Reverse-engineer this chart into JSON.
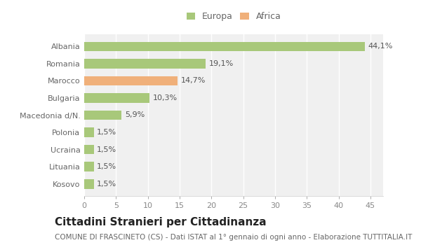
{
  "categories": [
    "Kosovo",
    "Lituania",
    "Ucraina",
    "Polonia",
    "Macedonia d/N.",
    "Bulgaria",
    "Marocco",
    "Romania",
    "Albania"
  ],
  "values": [
    1.5,
    1.5,
    1.5,
    1.5,
    5.9,
    10.3,
    14.7,
    19.1,
    44.1
  ],
  "labels": [
    "1,5%",
    "1,5%",
    "1,5%",
    "1,5%",
    "5,9%",
    "10,3%",
    "14,7%",
    "19,1%",
    "44,1%"
  ],
  "colors": [
    "#a8c87a",
    "#a8c87a",
    "#a8c87a",
    "#a8c87a",
    "#a8c87a",
    "#a8c87a",
    "#f0b07a",
    "#a8c87a",
    "#a8c87a"
  ],
  "legend": [
    {
      "label": "Europa",
      "color": "#a8c87a"
    },
    {
      "label": "Africa",
      "color": "#f0b07a"
    }
  ],
  "xlim": [
    0,
    47
  ],
  "xticks": [
    0,
    5,
    10,
    15,
    20,
    25,
    30,
    35,
    40,
    45
  ],
  "title": "Cittadini Stranieri per Cittadinanza",
  "subtitle": "COMUNE DI FRASCINETO (CS) - Dati ISTAT al 1° gennaio di ogni anno - Elaborazione TUTTITALIA.IT",
  "background_color": "#ffffff",
  "plot_bg_color": "#f0f0f0",
  "grid_color": "#ffffff",
  "bar_height": 0.55,
  "title_fontsize": 11,
  "subtitle_fontsize": 7.5,
  "label_fontsize": 8,
  "tick_fontsize": 8,
  "ylabel_color": "#666666",
  "xlabel_color": "#888888"
}
